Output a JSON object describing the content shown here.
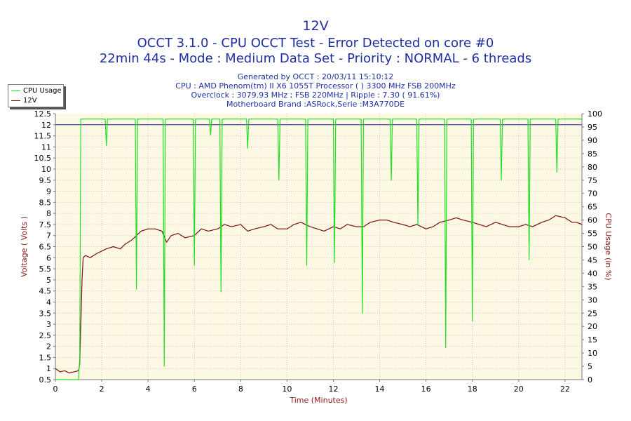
{
  "header": {
    "title": "12V",
    "line2": "OCCT 3.1.0 - CPU OCCT Test - Error Detected on core #0",
    "line3": "22min 44s - Mode : Medium Data Set - Priority : NORMAL - 6 threads",
    "info": [
      "Generated by OCCT : 20/03/11 15:10:12",
      "CPU : AMD Phenom(tm) II X6 1055T Processor (  ) 3300 MHz FSB 200MHz",
      "Overclock : 3079.93 MHz ; FSB 220MHz | Ripple : 7.30 ( 91.61%)",
      "Motherboard Brand :ASRock,Serie :M3A770DE"
    ]
  },
  "legend": [
    {
      "label": "CPU Usage",
      "color": "#22dd22"
    },
    {
      "label": "12V",
      "color": "#7a0c0c"
    }
  ],
  "colors": {
    "plot_bg": "#fdf8e4",
    "cpu": "#22dd22",
    "voltage": "#7a0c0c",
    "ref_line": "#1a1aa0",
    "axis_text": "#000000",
    "label_left": "#8b1a1a",
    "label_bottom": "#8b1a1a",
    "label_right": "#8b1a1a"
  },
  "chart_data": {
    "type": "line",
    "xlabel": "Time (Minutes)",
    "ylabel": "Voltage ( Volts )",
    "y2label": "CPU Usage (in %)",
    "xlim": [
      0,
      22.73
    ],
    "ylim": [
      0.5,
      12.5
    ],
    "y2lim": [
      0,
      100
    ],
    "xticks": [
      0,
      2,
      4,
      6,
      8,
      10,
      12,
      14,
      16,
      18,
      20,
      22
    ],
    "yticks": [
      0.5,
      1,
      1.5,
      2,
      2.5,
      3,
      3.5,
      4,
      4.5,
      5,
      5.5,
      6,
      6.5,
      7,
      7.5,
      8,
      8.5,
      9,
      9.5,
      10,
      10.5,
      11,
      11.5,
      12,
      12.5
    ],
    "y2ticks": [
      0,
      5,
      10,
      15,
      20,
      25,
      30,
      35,
      40,
      45,
      50,
      55,
      60,
      65,
      70,
      75,
      80,
      85,
      90,
      95,
      100
    ],
    "grid": true,
    "reference_line": 12,
    "series": [
      {
        "name": "12V",
        "axis": "left",
        "x": [
          0,
          0.2,
          0.4,
          0.6,
          0.8,
          1.0,
          1.05,
          1.1,
          1.15,
          1.2,
          1.3,
          1.5,
          1.8,
          2.0,
          2.2,
          2.5,
          2.8,
          3.0,
          3.3,
          3.5,
          3.7,
          4.0,
          4.3,
          4.6,
          4.8,
          5.0,
          5.3,
          5.6,
          6.0,
          6.3,
          6.6,
          7.0,
          7.3,
          7.6,
          8.0,
          8.3,
          8.6,
          9.0,
          9.3,
          9.6,
          10.0,
          10.3,
          10.6,
          11.0,
          11.3,
          11.6,
          12.0,
          12.3,
          12.6,
          13.0,
          13.3,
          13.6,
          14.0,
          14.3,
          14.6,
          15.0,
          15.3,
          15.6,
          16.0,
          16.3,
          16.6,
          17.0,
          17.3,
          17.6,
          18.0,
          18.3,
          18.6,
          19.0,
          19.3,
          19.6,
          20.0,
          20.3,
          20.6,
          21.0,
          21.3,
          21.6,
          22.0,
          22.3,
          22.5,
          22.73
        ],
        "values": [
          1.0,
          0.85,
          0.9,
          0.8,
          0.85,
          0.9,
          1.2,
          3.0,
          5.0,
          6.0,
          6.1,
          6.0,
          6.2,
          6.3,
          6.4,
          6.5,
          6.4,
          6.6,
          6.8,
          7.0,
          7.2,
          7.3,
          7.3,
          7.2,
          6.7,
          7.0,
          7.1,
          6.9,
          7.0,
          7.3,
          7.2,
          7.3,
          7.5,
          7.4,
          7.5,
          7.2,
          7.3,
          7.4,
          7.5,
          7.3,
          7.3,
          7.5,
          7.6,
          7.4,
          7.3,
          7.2,
          7.4,
          7.3,
          7.5,
          7.4,
          7.4,
          7.6,
          7.7,
          7.7,
          7.6,
          7.5,
          7.4,
          7.5,
          7.3,
          7.4,
          7.6,
          7.7,
          7.8,
          7.7,
          7.6,
          7.5,
          7.4,
          7.6,
          7.5,
          7.4,
          7.4,
          7.5,
          7.4,
          7.6,
          7.7,
          7.9,
          7.8,
          7.6,
          7.6,
          7.5
        ]
      },
      {
        "name": "CPU Usage",
        "axis": "right",
        "x": [
          0,
          1.0,
          1.05,
          1.1,
          1.15,
          2.15,
          2.2,
          2.25,
          3.45,
          3.5,
          3.55,
          4.65,
          4.7,
          4.75,
          5.95,
          6.0,
          6.05,
          6.65,
          6.7,
          6.75,
          7.1,
          7.15,
          7.2,
          8.25,
          8.3,
          8.35,
          9.6,
          9.65,
          9.7,
          10.8,
          10.85,
          10.9,
          12.0,
          12.05,
          12.1,
          13.2,
          13.25,
          13.3,
          14.45,
          14.5,
          14.55,
          15.6,
          15.65,
          15.7,
          16.8,
          16.85,
          16.9,
          17.95,
          18.0,
          18.05,
          19.2,
          19.25,
          19.3,
          20.4,
          20.45,
          20.5,
          21.6,
          21.65,
          21.7,
          22.73
        ],
        "values": [
          0,
          0,
          8,
          98,
          98,
          98,
          88,
          98,
          98,
          34,
          98,
          98,
          5,
          98,
          98,
          43,
          98,
          98,
          92,
          98,
          98,
          33,
          98,
          98,
          87,
          98,
          98,
          75,
          98,
          98,
          43,
          98,
          98,
          44,
          98,
          98,
          25,
          98,
          98,
          75,
          98,
          98,
          58,
          98,
          98,
          12,
          98,
          98,
          22,
          98,
          98,
          75,
          98,
          98,
          45,
          98,
          98,
          78,
          98,
          98
        ]
      }
    ]
  }
}
